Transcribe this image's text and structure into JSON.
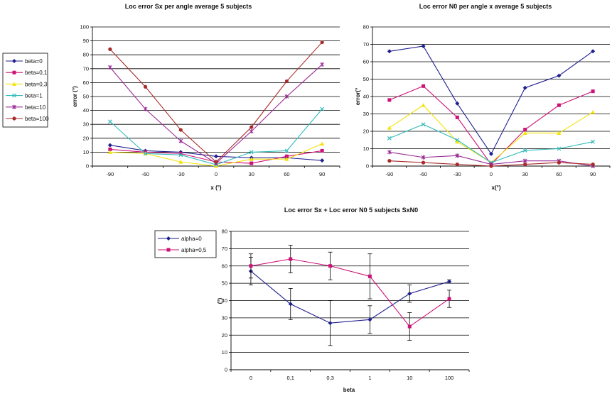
{
  "chart_data": [
    {
      "type": "line",
      "title": "Loc error Sx per angle average 5 subjects",
      "xlabel": "x (°)",
      "ylabel": "error (°)",
      "categories": [
        "-90",
        "-60",
        "-30",
        "0",
        "30",
        "60",
        "90"
      ],
      "ylim": [
        0,
        100
      ],
      "ystep": 10,
      "grid": true,
      "legend_position": "left",
      "series": [
        {
          "name": "beta=0",
          "color": "#1f1f8f",
          "marker": "diamond",
          "values": [
            15,
            11,
            10,
            7,
            6,
            6,
            4
          ]
        },
        {
          "name": "beta=0,1",
          "color": "#cc1177",
          "marker": "square",
          "values": [
            12,
            10,
            9,
            3,
            2,
            7,
            11
          ]
        },
        {
          "name": "beta=0,3",
          "color": "#f2e30a",
          "marker": "triangle",
          "values": [
            10,
            9,
            3,
            0,
            5,
            5,
            16
          ]
        },
        {
          "name": "beta=1",
          "color": "#33bbbb",
          "marker": "x",
          "values": [
            32,
            9,
            8,
            1,
            10,
            11,
            41
          ]
        },
        {
          "name": "beta=10",
          "color": "#9a2a96",
          "marker": "star",
          "values": [
            71,
            41,
            18,
            2,
            25,
            50,
            73
          ]
        },
        {
          "name": "beta=100",
          "color": "#a82a2a",
          "marker": "circle",
          "values": [
            84,
            57,
            26,
            3,
            28,
            61,
            89
          ]
        }
      ]
    },
    {
      "type": "line",
      "title": "Loc error N0 per angle x average 5 subjects",
      "xlabel": "x(°)",
      "ylabel": "error(°",
      "categories": [
        "-90",
        "-60",
        "-30",
        "0",
        "30",
        "60",
        "90"
      ],
      "ylim": [
        0,
        80
      ],
      "ystep": 10,
      "grid": true,
      "series": [
        {
          "color": "#1f1f8f",
          "marker": "diamond",
          "values": [
            66,
            69,
            36,
            7,
            45,
            52,
            66
          ]
        },
        {
          "color": "#cc1177",
          "marker": "square",
          "values": [
            38,
            46,
            28,
            1,
            21,
            35,
            43
          ]
        },
        {
          "color": "#f2e30a",
          "marker": "triangle",
          "values": [
            22,
            35,
            14,
            2,
            19,
            19,
            31
          ]
        },
        {
          "color": "#33bbbb",
          "marker": "x",
          "values": [
            16,
            24,
            15,
            2,
            9,
            10,
            14
          ]
        },
        {
          "color": "#9a2a96",
          "marker": "star",
          "values": [
            8,
            5,
            6,
            1,
            3,
            3,
            0
          ]
        },
        {
          "color": "#a82a2a",
          "marker": "circle",
          "values": [
            3,
            2,
            1,
            0,
            1,
            2,
            1
          ]
        }
      ]
    },
    {
      "type": "line",
      "title": "Loc error Sx + Loc error N0 5 subjects SxN0",
      "xlabel": "beta",
      "ylabel": "(°)",
      "categories": [
        "0",
        "0,1",
        "0,3",
        "1",
        "10",
        "100"
      ],
      "ylim": [
        0,
        80
      ],
      "ystep": 10,
      "grid": true,
      "legend_position": "top-left",
      "series": [
        {
          "name": "alpha=0",
          "color": "#1f1f8f",
          "marker": "diamond",
          "values": [
            57,
            38,
            27,
            29,
            44,
            51
          ],
          "error": [
            8,
            9,
            13,
            8,
            5,
            1
          ]
        },
        {
          "name": "alpha=0,5",
          "color": "#cc1177",
          "marker": "square",
          "values": [
            60,
            64,
            60,
            54,
            25,
            41
          ],
          "error": [
            7,
            8,
            8,
            13,
            8,
            5
          ]
        }
      ]
    }
  ]
}
